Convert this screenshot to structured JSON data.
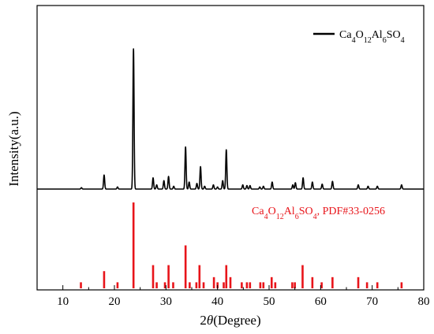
{
  "chart_data": {
    "type": "line",
    "xlabel_prefix": "2",
    "xlabel_italic": "θ",
    "xlabel_suffix": "(Degree)",
    "ylabel": "Intensity(a.u.)",
    "xlim": [
      5,
      80
    ],
    "xticks": [
      10,
      20,
      30,
      40,
      50,
      60,
      70,
      80
    ],
    "grid": false,
    "legend_position": "top-right",
    "series": [
      {
        "name_parts": [
          {
            "t": "Ca",
            "sub": false
          },
          {
            "t": "4",
            "sub": true
          },
          {
            "t": "O",
            "sub": false
          },
          {
            "t": "12",
            "sub": true
          },
          {
            "t": "Al",
            "sub": false
          },
          {
            "t": "6",
            "sub": true
          },
          {
            "t": "SO",
            "sub": false
          },
          {
            "t": "4",
            "sub": true
          }
        ],
        "color": "#000000",
        "baseline": 0,
        "peaks": [
          [
            13.6,
            1
          ],
          [
            18.0,
            10
          ],
          [
            20.6,
            1.5
          ],
          [
            23.7,
            100
          ],
          [
            27.5,
            8
          ],
          [
            28.2,
            3
          ],
          [
            29.6,
            6
          ],
          [
            30.5,
            9
          ],
          [
            31.5,
            2
          ],
          [
            33.8,
            30
          ],
          [
            34.5,
            5
          ],
          [
            36.0,
            4
          ],
          [
            36.7,
            16
          ],
          [
            37.5,
            2
          ],
          [
            39.2,
            3
          ],
          [
            40.0,
            1.5
          ],
          [
            41.0,
            6
          ],
          [
            41.7,
            28
          ],
          [
            44.9,
            3
          ],
          [
            45.7,
            2.5
          ],
          [
            46.3,
            2.5
          ],
          [
            48.2,
            1.5
          ],
          [
            48.9,
            2
          ],
          [
            50.6,
            5
          ],
          [
            54.6,
            3
          ],
          [
            55.1,
            4.5
          ],
          [
            56.6,
            8
          ],
          [
            58.4,
            5
          ],
          [
            60.3,
            3.5
          ],
          [
            62.3,
            5.5
          ],
          [
            67.3,
            3
          ],
          [
            69.2,
            2
          ],
          [
            71.0,
            2
          ],
          [
            75.7,
            3
          ]
        ]
      }
    ],
    "reference": {
      "label_parts": [
        {
          "t": "Ca",
          "sub": false
        },
        {
          "t": "4",
          "sub": true
        },
        {
          "t": "O",
          "sub": false
        },
        {
          "t": "12",
          "sub": true
        },
        {
          "t": "Al",
          "sub": false
        },
        {
          "t": "6",
          "sub": true
        },
        {
          "t": "SO",
          "sub": false
        },
        {
          "t": "4",
          "sub": true
        },
        {
          "t": ", PDF#33-0256",
          "sub": false
        }
      ],
      "color": "#e8141a",
      "lines": [
        [
          13.5,
          7
        ],
        [
          18.0,
          20
        ],
        [
          20.6,
          7
        ],
        [
          23.7,
          100
        ],
        [
          27.5,
          27
        ],
        [
          28.2,
          7
        ],
        [
          29.8,
          7
        ],
        [
          30.5,
          27
        ],
        [
          31.4,
          7
        ],
        [
          33.8,
          50
        ],
        [
          34.6,
          7
        ],
        [
          35.9,
          7
        ],
        [
          36.5,
          27
        ],
        [
          37.3,
          7
        ],
        [
          39.3,
          13
        ],
        [
          40.0,
          7
        ],
        [
          41.2,
          7
        ],
        [
          41.7,
          27
        ],
        [
          42.5,
          13
        ],
        [
          44.7,
          7
        ],
        [
          45.7,
          7
        ],
        [
          46.3,
          7
        ],
        [
          48.3,
          7
        ],
        [
          48.9,
          7
        ],
        [
          50.5,
          13
        ],
        [
          51.2,
          7
        ],
        [
          54.5,
          7
        ],
        [
          55.0,
          7
        ],
        [
          56.5,
          27
        ],
        [
          58.4,
          13
        ],
        [
          60.2,
          7
        ],
        [
          62.3,
          13
        ],
        [
          67.3,
          13
        ],
        [
          69.0,
          7
        ],
        [
          71.0,
          7
        ],
        [
          75.7,
          7
        ]
      ]
    }
  }
}
